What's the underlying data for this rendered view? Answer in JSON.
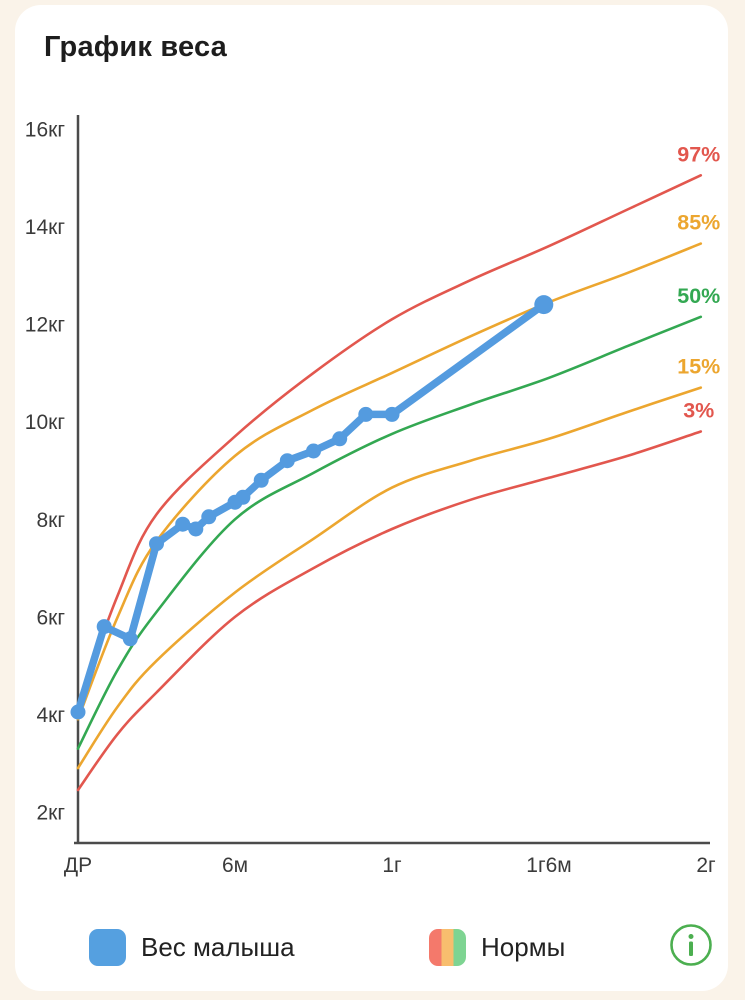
{
  "page_title": "График веса",
  "colors": {
    "page_bg": "#faf3e9",
    "card_bg": "#ffffff",
    "axis": "#4b4b4b",
    "tick_text": "#3b3b3b",
    "title_text": "#1d1d1d",
    "info_icon": "#4caf50"
  },
  "chart_data": {
    "type": "line",
    "title": "График веса",
    "grid": false,
    "x_axis": {
      "unit": "months",
      "range": [
        0,
        24
      ],
      "ticks": [
        {
          "value": 0,
          "label": "ДР"
        },
        {
          "value": 6,
          "label": "6м"
        },
        {
          "value": 12,
          "label": "1г"
        },
        {
          "value": 18,
          "label": "1г6м"
        },
        {
          "value": 24,
          "label": "2г"
        }
      ]
    },
    "y_axis": {
      "unit": "кг",
      "range": [
        2,
        16.3
      ],
      "ticks": [
        {
          "value": 2,
          "label": "2кг"
        },
        {
          "value": 4,
          "label": "4кг"
        },
        {
          "value": 6,
          "label": "6кг"
        },
        {
          "value": 8,
          "label": "8кг"
        },
        {
          "value": 10,
          "label": "10кг"
        },
        {
          "value": 12,
          "label": "12кг"
        },
        {
          "value": 14,
          "label": "14кг"
        },
        {
          "value": 16,
          "label": "16кг"
        }
      ]
    },
    "baby_series": {
      "name": "Вес малыша",
      "color": "#549bdf",
      "points": [
        [
          0,
          4.05
        ],
        [
          1,
          5.8
        ],
        [
          2,
          5.55
        ],
        [
          3,
          7.5
        ],
        [
          4,
          7.9
        ],
        [
          4.5,
          7.8
        ],
        [
          5,
          8.05
        ],
        [
          6,
          8.35
        ],
        [
          6.3,
          8.45
        ],
        [
          7,
          8.8
        ],
        [
          8,
          9.2
        ],
        [
          9,
          9.4
        ],
        [
          10,
          9.65
        ],
        [
          11,
          10.15
        ],
        [
          12,
          10.15
        ],
        [
          17.8,
          12.4
        ]
      ]
    },
    "percentile_series": [
      {
        "label": "97%",
        "color": "#e2574e",
        "months": [
          0,
          1.5,
          3,
          6,
          9,
          12,
          15,
          18,
          21,
          23.8
        ],
        "values": [
          4.2,
          6.42,
          8.1,
          9.7,
          11.0,
          12.1,
          12.9,
          13.6,
          14.35,
          15.05
        ]
      },
      {
        "label": "85%",
        "color": "#eca62f",
        "months": [
          0,
          1.5,
          3,
          6,
          9,
          12,
          15,
          18,
          21,
          23.8
        ],
        "values": [
          3.9,
          5.98,
          7.55,
          9.3,
          10.25,
          11.0,
          11.75,
          12.45,
          13.05,
          13.65
        ]
      },
      {
        "label": "50%",
        "color": "#33a852",
        "months": [
          0,
          1.5,
          3,
          6,
          9,
          12,
          15,
          18,
          21,
          23.8
        ],
        "values": [
          3.3,
          4.9,
          6.1,
          8.0,
          8.95,
          9.75,
          10.35,
          10.9,
          11.55,
          12.15
        ]
      },
      {
        "label": "15%",
        "color": "#eca62f",
        "months": [
          0,
          1.5,
          3,
          6,
          9,
          12,
          15,
          18,
          21,
          23.8
        ],
        "values": [
          2.9,
          4.15,
          5.1,
          6.5,
          7.6,
          8.65,
          9.2,
          9.65,
          10.2,
          10.7
        ]
      },
      {
        "label": "3%",
        "color": "#e2574e",
        "months": [
          0,
          1.5,
          3,
          6,
          9,
          12,
          15,
          18,
          21,
          23.8
        ],
        "values": [
          2.45,
          3.59,
          4.45,
          6.0,
          7.0,
          7.8,
          8.4,
          8.85,
          9.3,
          9.8
        ]
      }
    ]
  },
  "legend": {
    "baby_label": "Вес малыша",
    "baby_color": "#55a0e0",
    "norms_label": "Нормы",
    "norms_colors": [
      "#f4796b",
      "#f8be6e",
      "#7ed492"
    ]
  }
}
